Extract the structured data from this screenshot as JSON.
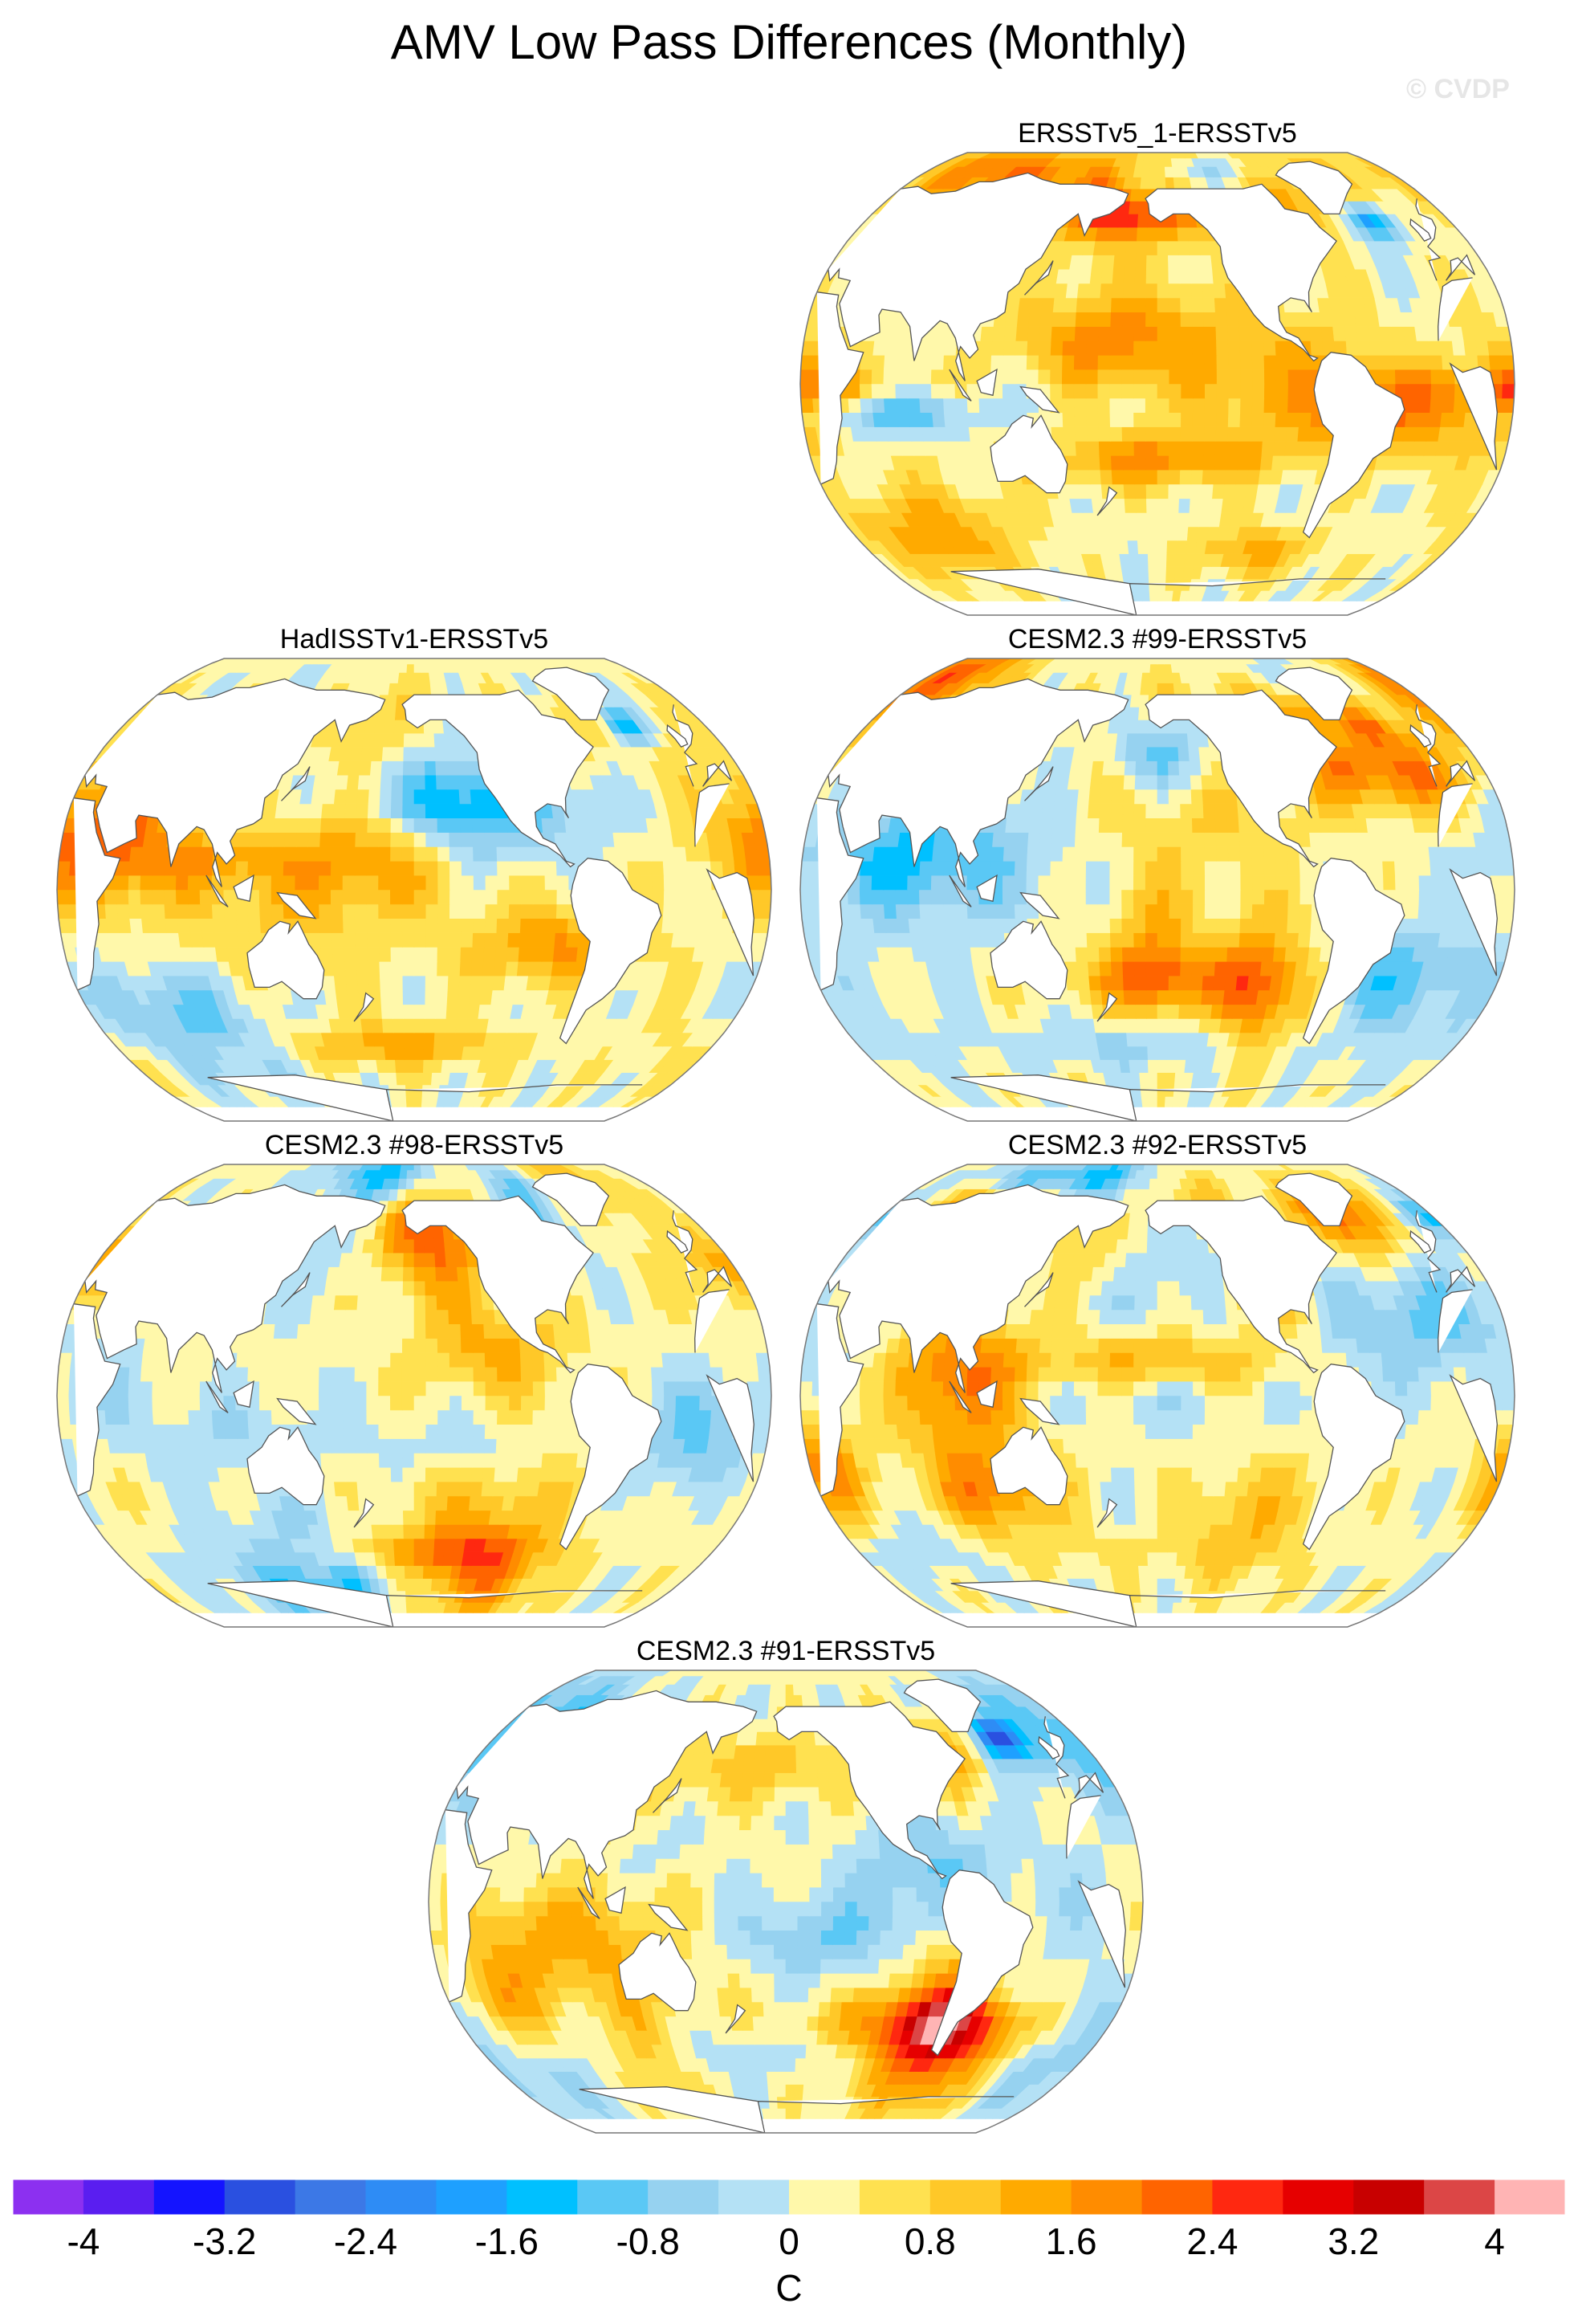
{
  "title": "AMV Low Pass Differences (Monthly)",
  "watermark": "© CVDP",
  "chart_data": [
    {
      "type": "heatmap",
      "title": "ERSSTv5_1-ERSSTv5",
      "projection": "Robinson (Pacific-centered)",
      "units": "C",
      "seed": 3
    },
    {
      "type": "heatmap",
      "title": "HadISSTv1-ERSSTv5",
      "projection": "Robinson (Pacific-centered)",
      "units": "C",
      "seed": 11
    },
    {
      "type": "heatmap",
      "title": "CESM2.3 #99-ERSSTv5",
      "projection": "Robinson (Pacific-centered)",
      "units": "C",
      "seed": 23
    },
    {
      "type": "heatmap",
      "title": "CESM2.3 #98-ERSSTv5",
      "projection": "Robinson (Pacific-centered)",
      "units": "C",
      "seed": 37
    },
    {
      "type": "heatmap",
      "title": "CESM2.3 #92-ERSSTv5",
      "projection": "Robinson (Pacific-centered)",
      "units": "C",
      "seed": 51
    },
    {
      "type": "heatmap",
      "title": "CESM2.3 #91-ERSSTv5",
      "projection": "Robinson (Pacific-centered)",
      "units": "C",
      "seed": 67
    }
  ],
  "colorbar": {
    "min": -4.4,
    "max": 4.4,
    "step": 0.4,
    "labels": [
      "-4",
      "-3.2",
      "-2.4",
      "-1.6",
      "-0.8",
      "0",
      "0.8",
      "1.6",
      "2.4",
      "3.2",
      "4"
    ],
    "label_values": [
      -4,
      -3.2,
      -2.4,
      -1.6,
      -0.8,
      0,
      0.8,
      1.6,
      2.4,
      3.2,
      4
    ],
    "units": "C",
    "colors": [
      "#8c30f0",
      "#5a1ef0",
      "#1414ff",
      "#2a50e0",
      "#3c78e6",
      "#2e8cf5",
      "#1ea0ff",
      "#00c0ff",
      "#5ac8f5",
      "#96d2f0",
      "#b4e1f5",
      "#fff8aa",
      "#ffe150",
      "#ffc828",
      "#ffaa00",
      "#ff8c00",
      "#ff6400",
      "#ff2810",
      "#e60000",
      "#c80000",
      "#dc4646",
      "#ffb4b4"
    ]
  }
}
